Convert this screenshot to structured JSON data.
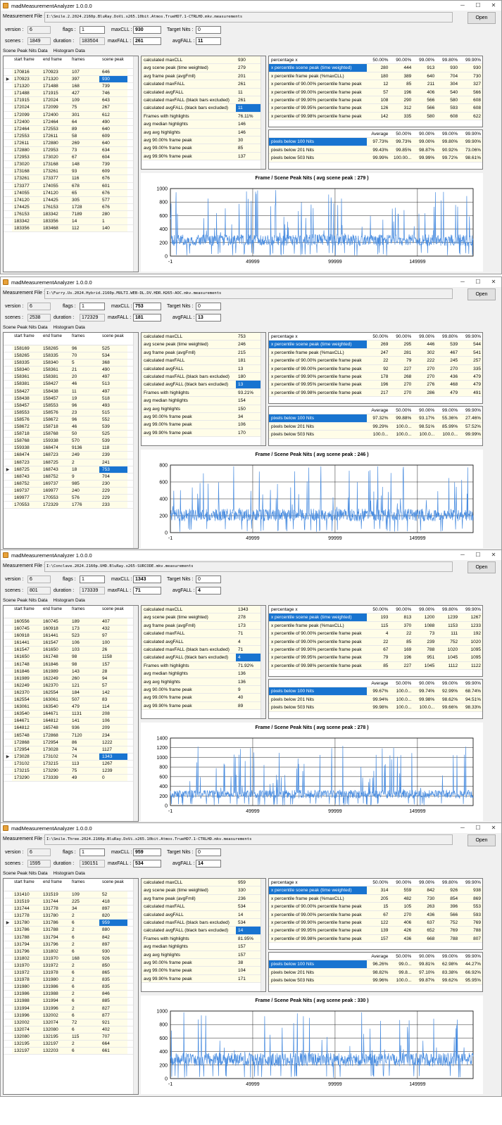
{
  "app_title": "madMeasurementAnalyzer 1.0.0.0",
  "window_buttons": [
    "─",
    "☐",
    "✕"
  ],
  "labels": {
    "measurement_file": "Measurement File :",
    "version": "version :",
    "flags": "flags :",
    "maxcll": "maxCLL :",
    "target_nits": "Target Nits :",
    "scenes": "scenes :",
    "duration": "duration :",
    "maxfall": "maxFALL :",
    "avgfall": "avgFALL :",
    "open": "Open",
    "tab_scene": "Scene Peak Nits Data",
    "tab_hist": "Histogram Data",
    "col_start": "start frame",
    "col_end": "end frame",
    "col_frames": "frames",
    "col_peak": "scene peak",
    "pct_header": [
      "percentage x",
      "50.00%",
      "90.00%",
      "99.00%",
      "99.80%",
      "99.90%"
    ],
    "avg_header": [
      "Average",
      "50.00%",
      "90.00%",
      "99.00%",
      "99.90%"
    ],
    "pct_rows": [
      "x percentile scene peak (time weighted)",
      "x percentile frame peak (%maxCLL)",
      "x percentile of  90.00% percentile frame peak",
      "x percentile of  99.00% percentile frame peak",
      "x percentile of  99.90% percentile frame peak",
      "x percentile of  99.95% percentile frame peak",
      "x percentile of  99.98% percentile frame peak"
    ],
    "avg_rows": [
      "pixels below 100 Nits",
      "pixels below 201 Nits",
      "pixels below 503 Nits"
    ],
    "stat_rows": [
      "calculated maxCLL",
      "avg scene peak (time weighted)",
      "avg frame peak (avgFmll)",
      "calculated maxFALL",
      "calculated avgFALL",
      "calculated maxFALL  (black bars excluded)",
      "calculated avgFALL  (black bars excluded)",
      "Frames with highlights",
      "avg median highlights",
      "avg avg highlights",
      "avg  90.00% frame peak",
      "avg  99.00% frame peak",
      "avg  99.90% frame peak"
    ]
  },
  "panels": [
    {
      "file": "I:\\Smile.2.2024.2160p.BluRay.DoVi.x265.10bit.Atmos.TrueHD7.1-CTRLHD.mkv.measurements",
      "version": "6",
      "flags": "1",
      "maxcll": "930",
      "target": "0",
      "scenes": "1849",
      "duration": "183504",
      "maxfall": "261",
      "avgfall": "11",
      "scene_rows": [
        [
          "170816",
          "170923",
          "107",
          "646"
        ],
        [
          "170923",
          "171320",
          "397",
          "930"
        ],
        [
          "171320",
          "171488",
          "168",
          "739"
        ],
        [
          "171488",
          "171915",
          "427",
          "746"
        ],
        [
          "171915",
          "172024",
          "109",
          "643"
        ],
        [
          "172024",
          "172099",
          "75",
          "267"
        ],
        [
          "172099",
          "172400",
          "301",
          "612"
        ],
        [
          "172400",
          "172464",
          "64",
          "490"
        ],
        [
          "172464",
          "172553",
          "89",
          "640"
        ],
        [
          "172553",
          "172611",
          "58",
          "609"
        ],
        [
          "172611",
          "172880",
          "269",
          "640"
        ],
        [
          "172880",
          "172953",
          "73",
          "634"
        ],
        [
          "172953",
          "173020",
          "67",
          "604"
        ],
        [
          "173020",
          "173168",
          "148",
          "739"
        ],
        [
          "173168",
          "173261",
          "93",
          "609"
        ],
        [
          "173261",
          "173377",
          "116",
          "676"
        ],
        [
          "173377",
          "174055",
          "678",
          "601"
        ],
        [
          "174055",
          "174120",
          "65",
          "676"
        ],
        [
          "174120",
          "174425",
          "305",
          "577"
        ],
        [
          "174425",
          "176153",
          "1728",
          "676"
        ],
        [
          "176153",
          "183342",
          "7189",
          "280"
        ],
        [
          "183342",
          "183356",
          "14",
          "1"
        ],
        [
          "183356",
          "183468",
          "112",
          "140"
        ]
      ],
      "sel_row": 1,
      "stat_vals": [
        "930",
        "279",
        "201",
        "261",
        "11",
        "261",
        "11",
        "76.11%",
        "146",
        "146",
        "30",
        "85",
        "137"
      ],
      "pct_vals": [
        [
          "280",
          "444",
          "913",
          "930",
          "930"
        ],
        [
          "180",
          "389",
          "640",
          "704",
          "730"
        ],
        [
          "12",
          "85",
          "211",
          "304",
          "327"
        ],
        [
          "57",
          "196",
          "406",
          "540",
          "566"
        ],
        [
          "108",
          "290",
          "566",
          "580",
          "608"
        ],
        [
          "126",
          "312",
          "566",
          "593",
          "608"
        ],
        [
          "142",
          "335",
          "580",
          "608",
          "622"
        ]
      ],
      "avg_vals": [
        [
          "97.73%",
          "99.73%",
          "99.00%",
          "99.80%",
          "99.90%"
        ],
        [
          "99.43%",
          "99.85%",
          "98.87%",
          "90.92%",
          "73.06%"
        ],
        [
          "99.99%",
          "100.00...",
          "99.99%",
          "99.72%",
          "98.61%"
        ]
      ],
      "chart_title": "Frame / Scene Peak Nits ( avg scene peak : 279 )",
      "chart_data": {
        "type": "line",
        "ylim": [
          0,
          1000
        ],
        "xticks": [
          "-1",
          "49999",
          "99999",
          "149999"
        ],
        "yticks": [
          "0",
          "200",
          "400",
          "600",
          "800",
          "1000"
        ],
        "avg": 279,
        "seed": 3
      }
    },
    {
      "file": "I:\\Furry.Us.2024.Hybrid.2160p.MULTI.WEB-DL.DV.HDR.H265-AOC.mkv.measurements",
      "version": "6",
      "flags": "1",
      "maxcll": "753",
      "target": "0",
      "scenes": "2538",
      "duration": "172329",
      "maxfall": "181",
      "avgfall": "13",
      "scene_rows": [
        [
          "158169",
          "158265",
          "96",
          "525"
        ],
        [
          "158265",
          "158335",
          "70",
          "534"
        ],
        [
          "158335",
          "158340",
          "5",
          "368"
        ],
        [
          "158340",
          "158361",
          "21",
          "490"
        ],
        [
          "158361",
          "158381",
          "20",
          "497"
        ],
        [
          "158381",
          "158427",
          "46",
          "513"
        ],
        [
          "158427",
          "158438",
          "11",
          "497"
        ],
        [
          "158438",
          "158457",
          "19",
          "518"
        ],
        [
          "158457",
          "158553",
          "96",
          "493"
        ],
        [
          "158553",
          "158576",
          "23",
          "515"
        ],
        [
          "158576",
          "158672",
          "96",
          "552"
        ],
        [
          "158672",
          "158718",
          "46",
          "539"
        ],
        [
          "158718",
          "158768",
          "50",
          "525"
        ],
        [
          "158768",
          "159338",
          "570",
          "539"
        ],
        [
          "159338",
          "168474",
          "9136",
          "118"
        ],
        [
          "168474",
          "168723",
          "249",
          "239"
        ],
        [
          "168723",
          "168725",
          "2",
          "241"
        ],
        [
          "168725",
          "168743",
          "18",
          "753"
        ],
        [
          "168743",
          "168752",
          "9",
          "704"
        ],
        [
          "168752",
          "169737",
          "985",
          "230"
        ],
        [
          "169737",
          "169977",
          "240",
          "229"
        ],
        [
          "169977",
          "170553",
          "576",
          "229"
        ],
        [
          "170553",
          "172329",
          "1776",
          "233"
        ]
      ],
      "sel_row": 17,
      "stat_vals": [
        "753",
        "246",
        "215",
        "181",
        "13",
        "180",
        "13",
        "93.21%",
        "154",
        "150",
        "34",
        "106",
        "170"
      ],
      "pct_vals": [
        [
          "269",
          "295",
          "446",
          "539",
          "544"
        ],
        [
          "247",
          "281",
          "302",
          "467",
          "541"
        ],
        [
          "22",
          "79",
          "222",
          "245",
          "257"
        ],
        [
          "92",
          "227",
          "270",
          "270",
          "335"
        ],
        [
          "178",
          "268",
          "270",
          "436",
          "479"
        ],
        [
          "196",
          "270",
          "276",
          "468",
          "479"
        ],
        [
          "217",
          "270",
          "286",
          "479",
          "491"
        ]
      ],
      "avg_vals": [
        [
          "97.32%",
          "99.88%",
          "93.17%",
          "55.36%",
          "27.46%"
        ],
        [
          "99.29%",
          "100.0...",
          "98.51%",
          "85.99%",
          "57.52%"
        ],
        [
          "100.0...",
          "100.0...",
          "100.0...",
          "100.0...",
          "99.99%"
        ]
      ],
      "chart_title": "Frame / Scene Peak Nits ( avg scene peak : 246 )",
      "chart_data": {
        "type": "line",
        "ylim": [
          0,
          800
        ],
        "xticks": [
          "-1",
          "49999",
          "99999",
          "149999"
        ],
        "yticks": [
          "0",
          "200",
          "400",
          "600",
          "800"
        ],
        "avg": 246,
        "seed": 7
      }
    },
    {
      "file": "I:\\Conclave.2024.2160p.UHD.BluRay.x265-SURCODE.mkv.measurements",
      "version": "6",
      "flags": "1",
      "maxcll": "1343",
      "target": "0",
      "scenes": "801",
      "duration": "173339",
      "maxfall": "71",
      "avgfall": "4",
      "scene_rows": [
        [
          "160556",
          "160745",
          "189",
          "407"
        ],
        [
          "160745",
          "160918",
          "173",
          "432"
        ],
        [
          "160918",
          "161441",
          "523",
          "97"
        ],
        [
          "161441",
          "161547",
          "106",
          "100"
        ],
        [
          "161547",
          "161650",
          "103",
          "26"
        ],
        [
          "161650",
          "161748",
          "98",
          "1158"
        ],
        [
          "161748",
          "161846",
          "98",
          "157"
        ],
        [
          "161846",
          "161989",
          "143",
          "28"
        ],
        [
          "161989",
          "162249",
          "260",
          "94"
        ],
        [
          "162249",
          "162370",
          "121",
          "57"
        ],
        [
          "162370",
          "162554",
          "184",
          "142"
        ],
        [
          "162554",
          "163061",
          "507",
          "83"
        ],
        [
          "163061",
          "163540",
          "479",
          "114"
        ],
        [
          "163540",
          "164671",
          "1131",
          "208"
        ],
        [
          "164671",
          "164812",
          "141",
          "106"
        ],
        [
          "164812",
          "165748",
          "936",
          "209"
        ],
        [
          "165748",
          "172868",
          "7120",
          "234"
        ],
        [
          "172868",
          "172954",
          "86",
          "1222"
        ],
        [
          "172954",
          "173028",
          "74",
          "1127"
        ],
        [
          "173028",
          "173102",
          "74",
          "1343"
        ],
        [
          "173102",
          "173215",
          "113",
          "1267"
        ],
        [
          "173215",
          "173290",
          "75",
          "1239"
        ],
        [
          "173290",
          "173339",
          "49",
          "0"
        ]
      ],
      "sel_row": 19,
      "stat_vals": [
        "1343",
        "278",
        "173",
        "71",
        "4",
        "71",
        "4",
        "71.92%",
        "136",
        "136",
        "9",
        "40",
        "89"
      ],
      "pct_vals": [
        [
          "193",
          "813",
          "1200",
          "1239",
          "1267"
        ],
        [
          "115",
          "370",
          "1088",
          "1153",
          "1233"
        ],
        [
          "4",
          "22",
          "73",
          "111",
          "192"
        ],
        [
          "22",
          "85",
          "239",
          "752",
          "1020"
        ],
        [
          "67",
          "169",
          "788",
          "1020",
          "1095"
        ],
        [
          "79",
          "196",
          "951",
          "1045",
          "1095"
        ],
        [
          "85",
          "227",
          "1045",
          "1112",
          "1122"
        ]
      ],
      "avg_vals": [
        [
          "99.67%",
          "100.0...",
          "99.74%",
          "92.99%",
          "68.74%"
        ],
        [
          "99.94%",
          "100.0...",
          "99.98%",
          "98.62%",
          "94.51%"
        ],
        [
          "99.98%",
          "100.0...",
          "100.0...",
          "99.66%",
          "98.33%"
        ]
      ],
      "chart_title": "Frame / Scene Peak Nits ( avg scene peak : 278 )",
      "chart_data": {
        "type": "line",
        "ylim": [
          0,
          1400
        ],
        "xticks": [
          "-1",
          "49999",
          "99999",
          "149999"
        ],
        "yticks": [
          "0",
          "200",
          "400",
          "600",
          "800",
          "1000",
          "1200",
          "1400"
        ],
        "avg": 278,
        "seed": 11
      }
    },
    {
      "file": "I:\\Smile.Three.2024.2160p.BluRay.DoVi.x265.10bit.Atmos.TrueHD7.1-CTRLHD.mkv.measurements",
      "version": "6",
      "flags": "1",
      "maxcll": "959",
      "target": "0",
      "scenes": "1595",
      "duration": "190151",
      "maxfall": "534",
      "avgfall": "14",
      "scene_rows": [
        [
          "131410",
          "131519",
          "109",
          "52"
        ],
        [
          "131519",
          "131744",
          "225",
          "418"
        ],
        [
          "131744",
          "131778",
          "34",
          "897"
        ],
        [
          "131778",
          "131780",
          "2",
          "820"
        ],
        [
          "131780",
          "131786",
          "6",
          "959"
        ],
        [
          "131786",
          "131788",
          "2",
          "880"
        ],
        [
          "131788",
          "131794",
          "6",
          "842"
        ],
        [
          "131794",
          "131796",
          "2",
          "897"
        ],
        [
          "131796",
          "131802",
          "6",
          "930"
        ],
        [
          "131802",
          "131970",
          "168",
          "926"
        ],
        [
          "131970",
          "131972",
          "2",
          "850"
        ],
        [
          "131972",
          "131978",
          "6",
          "865"
        ],
        [
          "131978",
          "131980",
          "2",
          "835"
        ],
        [
          "131980",
          "131986",
          "6",
          "835"
        ],
        [
          "131986",
          "131988",
          "2",
          "846"
        ],
        [
          "131988",
          "131994",
          "6",
          "885"
        ],
        [
          "131994",
          "131996",
          "2",
          "827"
        ],
        [
          "131996",
          "132002",
          "6",
          "877"
        ],
        [
          "132002",
          "132074",
          "72",
          "921"
        ],
        [
          "132074",
          "132080",
          "6",
          "402"
        ],
        [
          "132080",
          "132195",
          "115",
          "707"
        ],
        [
          "132195",
          "132197",
          "2",
          "664"
        ],
        [
          "132197",
          "132203",
          "6",
          "661"
        ]
      ],
      "sel_row": 4,
      "stat_vals": [
        "959",
        "330",
        "236",
        "534",
        "14",
        "534",
        "14",
        "81.95%",
        "157",
        "157",
        "38",
        "104",
        "171"
      ],
      "pct_vals": [
        [
          "314",
          "559",
          "842",
          "926",
          "938"
        ],
        [
          "205",
          "482",
          "730",
          "854",
          "869"
        ],
        [
          "15",
          "105",
          "263",
          "396",
          "553"
        ],
        [
          "67",
          "270",
          "436",
          "566",
          "593"
        ],
        [
          "122",
          "406",
          "637",
          "752",
          "769"
        ],
        [
          "139",
          "426",
          "652",
          "769",
          "788"
        ],
        [
          "157",
          "436",
          "668",
          "788",
          "807"
        ]
      ],
      "avg_vals": [
        [
          "96.26%",
          "99.0...",
          "99.81%",
          "62.98%",
          "44.27%"
        ],
        [
          "98.82%",
          "99.8...",
          "97.10%",
          "83.38%",
          "66.92%"
        ],
        [
          "99.96%",
          "100.0...",
          "99.87%",
          "99.62%",
          "95.95%"
        ]
      ],
      "chart_title": "Frame / Scene Peak Nits ( avg scene peak : 330 )",
      "chart_data": {
        "type": "line",
        "ylim": [
          0,
          1000
        ],
        "xticks": [
          "-1",
          "49999",
          "99999",
          "149999"
        ],
        "yticks": [
          "0",
          "200",
          "400",
          "600",
          "800",
          "1000"
        ],
        "avg": 330,
        "seed": 19
      }
    }
  ],
  "colors": {
    "accent": "#1874d0",
    "line": "#4a8de0",
    "cell_bg": "#fffde8"
  }
}
